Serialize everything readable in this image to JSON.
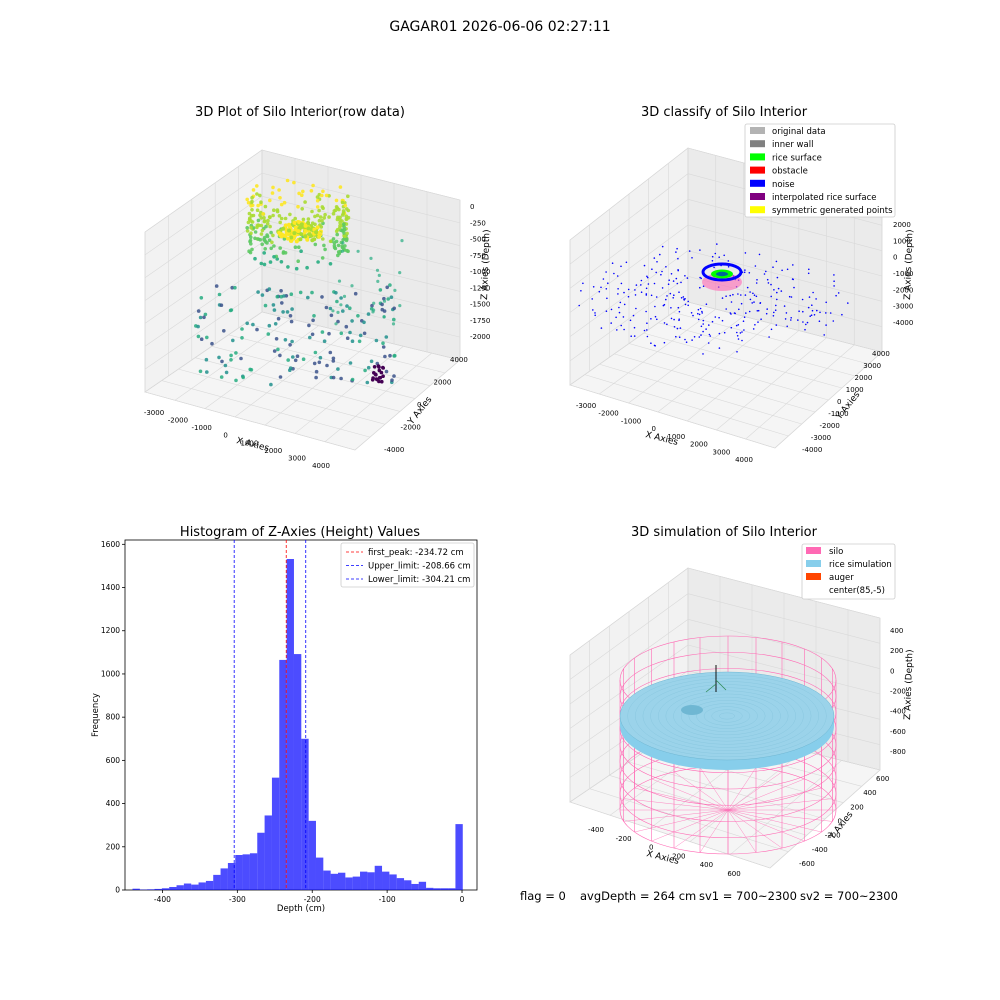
{
  "figure": {
    "suptitle": "GAGAR01 2026-06-06 02:27:11",
    "footer": {
      "flag": "flag = 0",
      "avg_depth": "avgDepth = 264 cm",
      "sv1": "sv1 = 700~2300",
      "sv2": "sv2 = 700~2300"
    }
  },
  "chart_data": [
    {
      "type": "scatter",
      "projection": "3d",
      "title": "3D Plot of Silo Interior(row data)",
      "xlabel": "X Axies",
      "ylabel": "Y Axies",
      "zlabel": "Z Axies (Depth)",
      "xticks": [
        "-3000",
        "-2000",
        "-1000",
        "0",
        "1000",
        "2000",
        "3000",
        "4000"
      ],
      "yticks": [
        "-4000",
        "-2000",
        "0",
        "2000",
        "4000"
      ],
      "zticks": [
        "0",
        "-250",
        "-500",
        "-750",
        "-1000",
        "-1250",
        "-1500",
        "-1750",
        "-2000"
      ],
      "colormap": "viridis",
      "grid": true
    },
    {
      "type": "scatter",
      "projection": "3d",
      "title": "3D classify of Silo Interior",
      "xlabel": "X Axies",
      "ylabel": "Y Axies",
      "zlabel": "Z Axies (Depth)",
      "xticks": [
        "-3000",
        "-2000",
        "-1000",
        "0",
        "1000",
        "2000",
        "3000",
        "4000"
      ],
      "yticks": [
        "-4000",
        "-3000",
        "-2000",
        "-1000",
        "0",
        "1000",
        "2000",
        "3000",
        "4000"
      ],
      "zticks": [
        "2000",
        "1000",
        "0",
        "-1000",
        "-2000",
        "-3000",
        "-4000"
      ],
      "legend": [
        {
          "label": "original data",
          "color": "#b3b3b3"
        },
        {
          "label": "inner wall",
          "color": "#808080"
        },
        {
          "label": "rice surface",
          "color": "#00ff00"
        },
        {
          "label": "obstacle",
          "color": "#ff0000"
        },
        {
          "label": "noise",
          "color": "#0000ff"
        },
        {
          "label": "interpolated rice surface",
          "color": "#800080"
        },
        {
          "label": "symmetric generated points",
          "color": "#ffff00"
        }
      ],
      "legend_loc": "upper right",
      "grid": true
    },
    {
      "type": "bar",
      "title": "Histogram of Z-Axies (Height) Values",
      "xlabel": "Depth (cm)",
      "ylabel": "Frequency",
      "xlim": [
        -450,
        20
      ],
      "ylim": [
        0,
        1620
      ],
      "xticks": [
        -400,
        -300,
        -200,
        -100,
        0
      ],
      "yticks": [
        0,
        200,
        400,
        600,
        800,
        1000,
        1200,
        1400,
        1600
      ],
      "bin_width": 9.8,
      "bin_starts": [
        -440,
        -430.2,
        -420.4,
        -410.6,
        -400.8,
        -391,
        -381.2,
        -371.4,
        -361.6,
        -351.8,
        -342,
        -332.2,
        -322.4,
        -312.6,
        -302.8,
        -293,
        -283.2,
        -273.4,
        -263.6,
        -253.8,
        -244,
        -234.2,
        -224.4,
        -214.6,
        -204.8,
        -195,
        -185.2,
        -175.4,
        -165.6,
        -155.8,
        -146,
        -136.2,
        -126.4,
        -116.6,
        -106.8,
        -97,
        -87.2,
        -77.4,
        -67.6,
        -57.8,
        -48,
        -38.2,
        -28.4,
        -18.6,
        -8.8
      ],
      "values": [
        6,
        2,
        3,
        5,
        8,
        14,
        22,
        30,
        25,
        35,
        42,
        70,
        100,
        125,
        162,
        165,
        170,
        265,
        345,
        520,
        1065,
        1532,
        1092,
        700,
        320,
        150,
        90,
        75,
        80,
        58,
        62,
        85,
        82,
        112,
        85,
        72,
        55,
        45,
        28,
        38,
        10,
        8,
        8,
        8,
        305
      ],
      "bar_color": "#0000ff",
      "bar_alpha": 0.7,
      "vlines": [
        {
          "label": "first_peak: -234.72 cm",
          "x": -234.72,
          "color": "#ff0000"
        },
        {
          "label": "Upper_limit: -208.66 cm",
          "x": -208.66,
          "color": "#0000ff"
        },
        {
          "label": "Lower_limit: -304.21 cm",
          "x": -304.21,
          "color": "#0000ff"
        }
      ],
      "legend_loc": "upper right"
    },
    {
      "type": "surface",
      "projection": "3d",
      "title": "3D simulation of Silo Interior",
      "xlabel": "X Axies",
      "ylabel": "Y Axies",
      "zlabel": "Z Axies (Depth)",
      "xticks": [
        "-400",
        "-200",
        "0",
        "200",
        "400",
        "600"
      ],
      "yticks": [
        "-600",
        "-400",
        "-200",
        "0",
        "200",
        "400",
        "600"
      ],
      "zticks": [
        "400",
        "200",
        "0",
        "-200",
        "-400",
        "-600",
        "-800"
      ],
      "legend": [
        {
          "label": "silo",
          "color": "#ff69b4"
        },
        {
          "label": "rice simulation",
          "color": "#87ceeb"
        },
        {
          "label": "auger",
          "color": "#ff4500"
        },
        {
          "label": "center(85,-5)",
          "color": "#ffffff"
        }
      ],
      "legend_loc": "upper right",
      "grid": true
    }
  ]
}
